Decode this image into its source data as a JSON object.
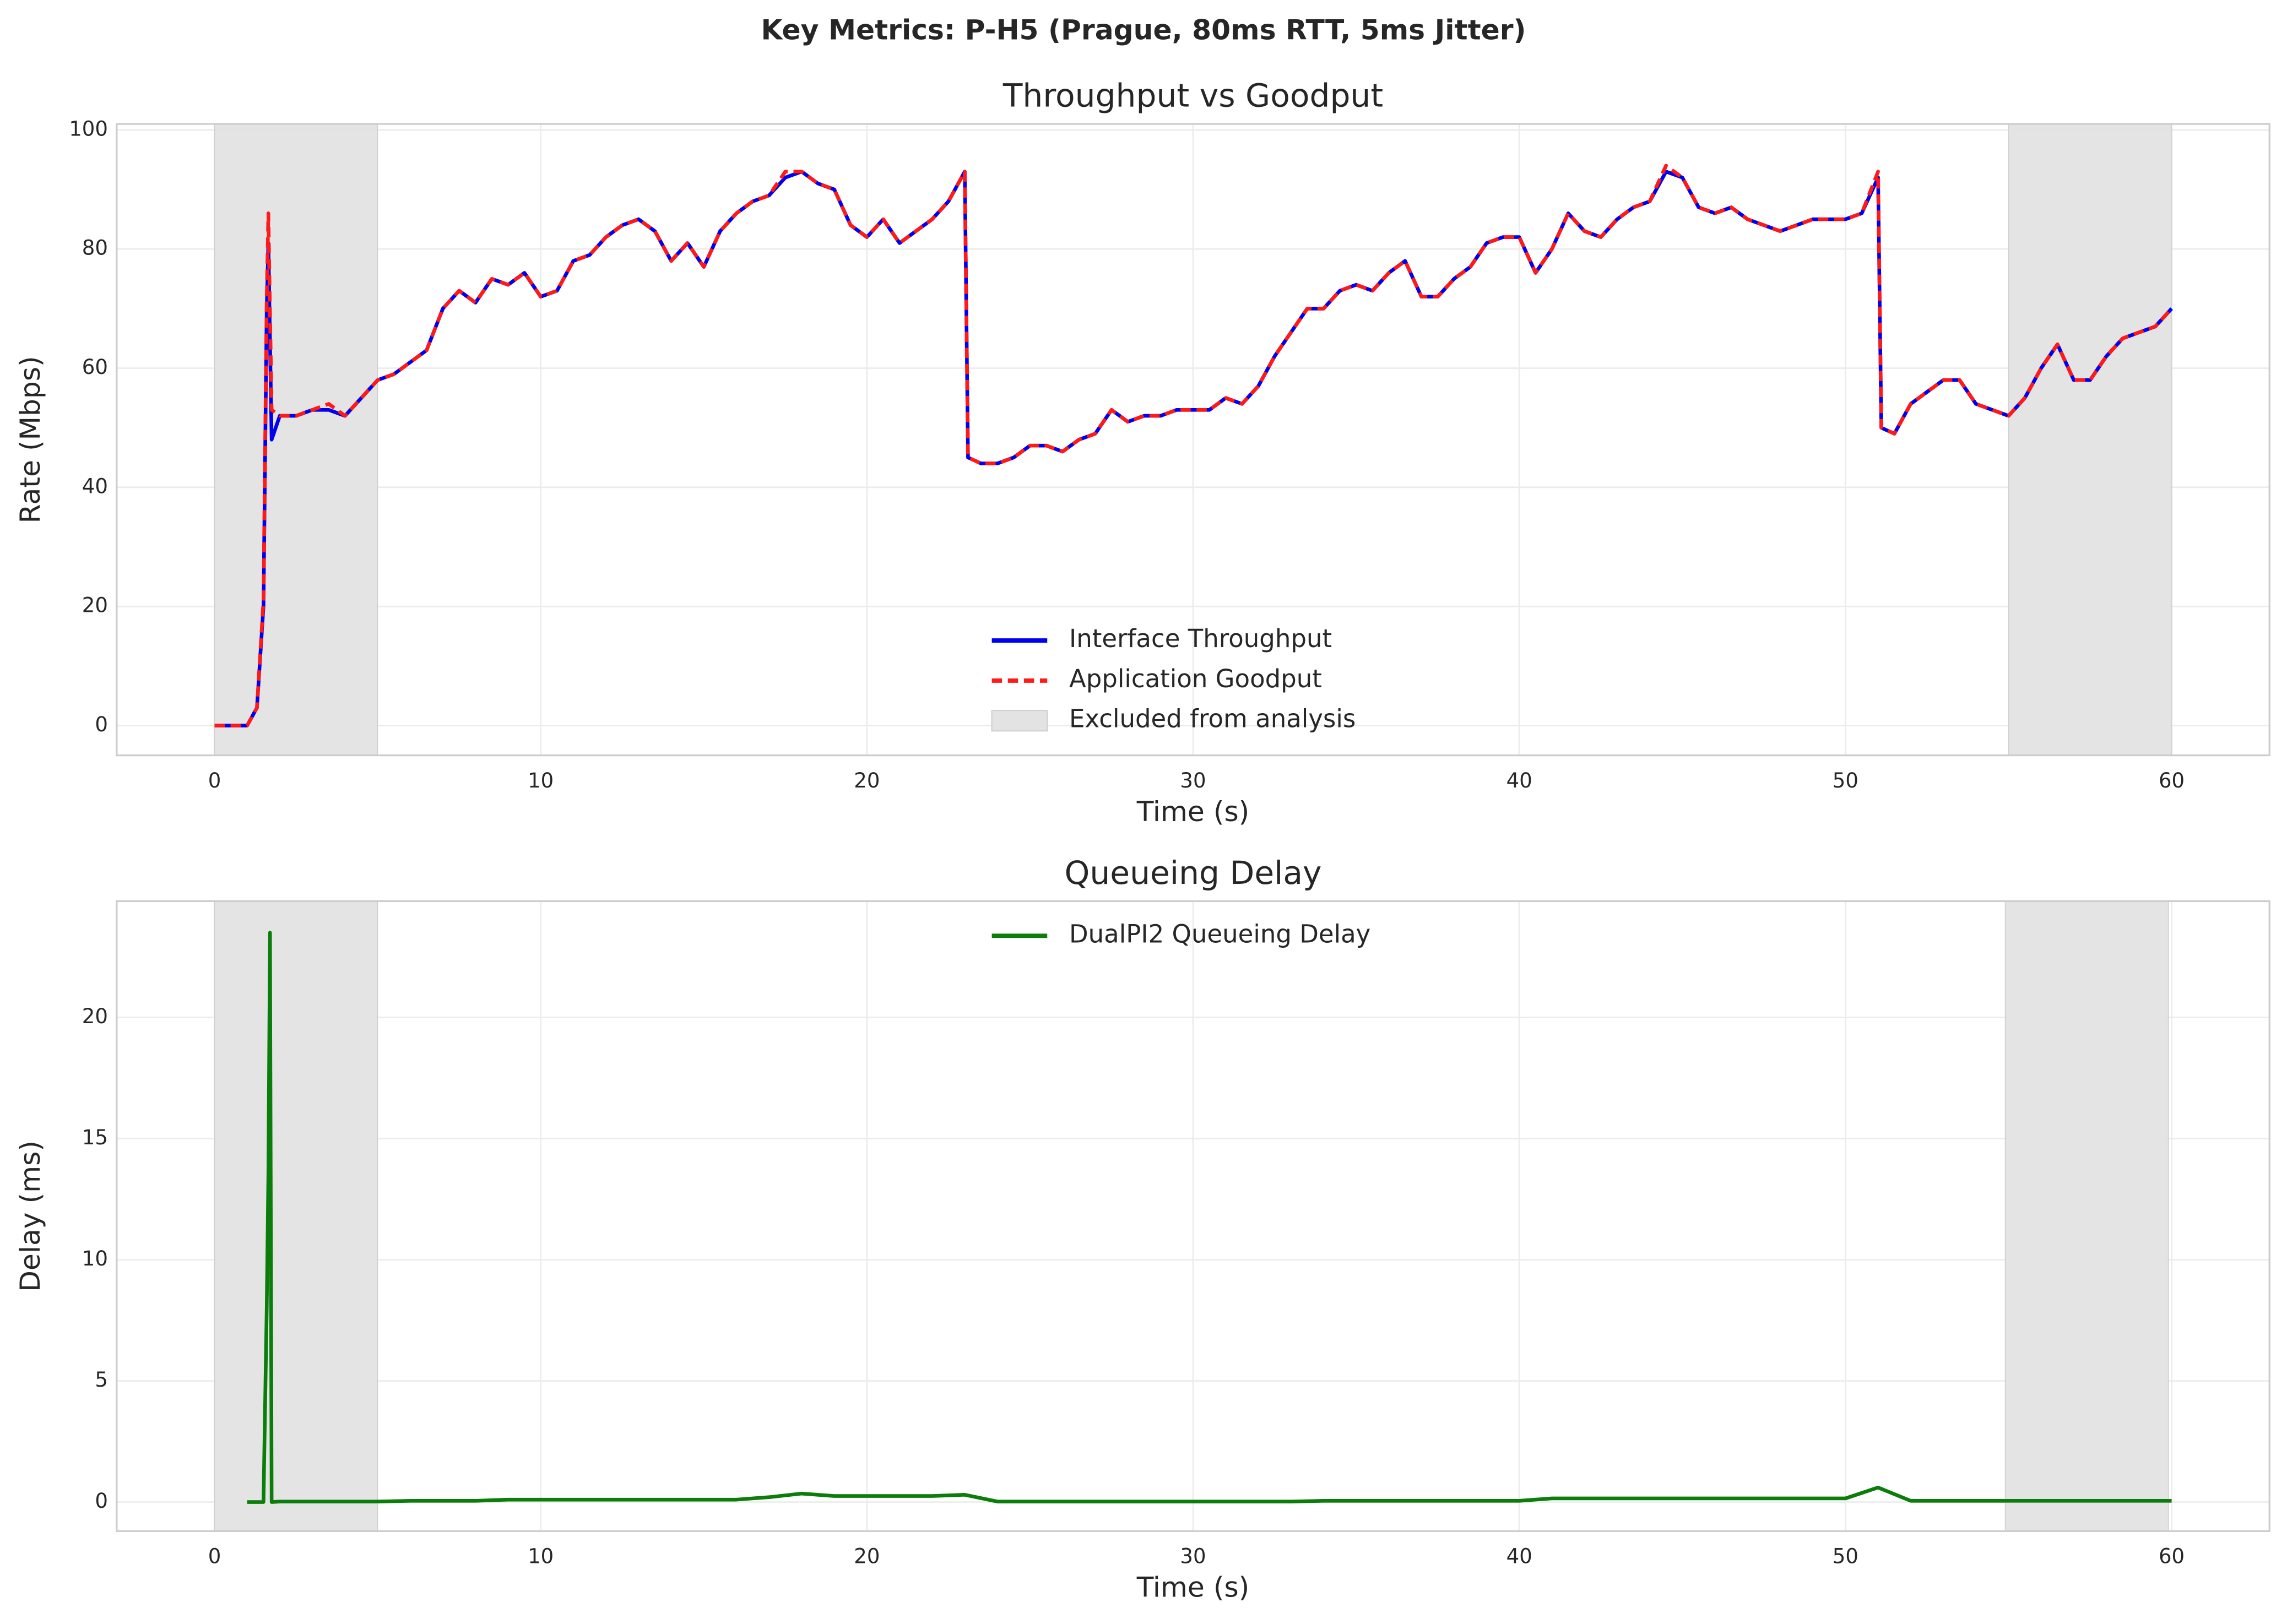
{
  "title": "Key Metrics: P-H5 (Prague, 80ms RTT, 5ms Jitter)",
  "chart_data": [
    {
      "type": "line",
      "title": "Throughput vs Goodput",
      "xlabel": "Time (s)",
      "ylabel": "Rate (Mbps)",
      "x": [
        0,
        0.5,
        1,
        1.3,
        1.5,
        1.6,
        1.65,
        1.75,
        2,
        2.5,
        3,
        3.5,
        4,
        4.5,
        5,
        5.5,
        6,
        6.5,
        7,
        7.5,
        8,
        8.5,
        9,
        9.5,
        10,
        10.5,
        11,
        11.5,
        12,
        12.5,
        13,
        13.5,
        14,
        14.5,
        15,
        15.5,
        16,
        16.5,
        17,
        17.5,
        18,
        18.5,
        19,
        19.5,
        20,
        20.5,
        21,
        21.5,
        22,
        22.5,
        23,
        23.1,
        23.5,
        24,
        24.5,
        25,
        25.5,
        26,
        26.5,
        27,
        27.5,
        28,
        28.5,
        29,
        29.5,
        30,
        30.5,
        31,
        31.5,
        32,
        32.5,
        33,
        33.5,
        34,
        34.5,
        35,
        35.5,
        36,
        36.5,
        37,
        37.5,
        38,
        38.5,
        39,
        39.5,
        40,
        40.5,
        41,
        41.5,
        42,
        42.5,
        43,
        43.5,
        44,
        44.5,
        45,
        45.5,
        46,
        46.5,
        47,
        47.5,
        48,
        48.5,
        49,
        49.5,
        50,
        50.5,
        51,
        51.1,
        51.5,
        52,
        52.5,
        53,
        53.5,
        54,
        54.5,
        55,
        55.5,
        56,
        56.5,
        57,
        57.5,
        58,
        58.5,
        59,
        59.5,
        60
      ],
      "series": [
        {
          "name": "Interface Throughput",
          "color": "#0000ee",
          "linestyle": "solid",
          "values": [
            0,
            0,
            0,
            3,
            20,
            70,
            81,
            48,
            52,
            52,
            53,
            53,
            52,
            55,
            58,
            59,
            61,
            63,
            70,
            73,
            71,
            75,
            74,
            76,
            72,
            73,
            78,
            79,
            82,
            84,
            85,
            83,
            78,
            81,
            77,
            83,
            86,
            88,
            89,
            92,
            93,
            91,
            90,
            84,
            82,
            85,
            81,
            83,
            85,
            88,
            93,
            45,
            44,
            44,
            45,
            47,
            47,
            46,
            48,
            49,
            53,
            51,
            52,
            52,
            53,
            53,
            53,
            55,
            54,
            57,
            62,
            66,
            70,
            70,
            73,
            74,
            73,
            76,
            78,
            72,
            72,
            75,
            77,
            81,
            82,
            82,
            76,
            80,
            86,
            83,
            82,
            85,
            87,
            88,
            93,
            92,
            87,
            86,
            87,
            85,
            84,
            83,
            84,
            85,
            85,
            85,
            86,
            92,
            50,
            49,
            54,
            56,
            58,
            58,
            54,
            53,
            52,
            55,
            60,
            64,
            58,
            58,
            62,
            65,
            66,
            67,
            70
          ]
        },
        {
          "name": "Application Goodput",
          "color": "#ff1a1a",
          "linestyle": "dashed",
          "values": [
            0,
            0,
            0,
            3,
            21,
            72,
            86,
            53,
            52,
            52,
            53,
            54,
            52,
            55,
            58,
            59,
            61,
            63,
            70,
            73,
            71,
            75,
            74,
            76,
            72,
            73,
            78,
            79,
            82,
            84,
            85,
            83,
            78,
            81,
            77,
            83,
            86,
            88,
            89,
            93,
            93,
            91,
            90,
            84,
            82,
            85,
            81,
            83,
            85,
            88,
            93,
            45,
            44,
            44,
            45,
            47,
            47,
            46,
            48,
            49,
            53,
            51,
            52,
            52,
            53,
            53,
            53,
            55,
            54,
            57,
            62,
            66,
            70,
            70,
            73,
            74,
            73,
            76,
            78,
            72,
            72,
            75,
            77,
            81,
            82,
            82,
            76,
            80,
            86,
            83,
            82,
            85,
            87,
            88,
            94,
            92,
            87,
            86,
            87,
            85,
            84,
            83,
            84,
            85,
            85,
            85,
            86,
            93,
            50,
            49,
            54,
            56,
            58,
            58,
            54,
            53,
            52,
            55,
            60,
            64,
            58,
            58,
            62,
            65,
            66,
            67,
            70
          ]
        }
      ],
      "excluded": {
        "name": "Excluded from analysis",
        "color": "#e3e3e3",
        "ranges": [
          [
            0,
            5
          ],
          [
            55,
            60
          ]
        ]
      },
      "xlim": [
        -3,
        63
      ],
      "ylim": [
        -5,
        101
      ],
      "xticks": [
        0,
        10,
        20,
        30,
        40,
        50,
        60
      ],
      "yticks": [
        0,
        20,
        40,
        60,
        80,
        100
      ],
      "grid": true,
      "legend": "lower center"
    },
    {
      "type": "line",
      "title": "Queueing Delay",
      "xlabel": "Time (s)",
      "ylabel": "Delay (ms)",
      "x": [
        1,
        1.5,
        1.6,
        1.65,
        1.7,
        1.75,
        2,
        3,
        4,
        5,
        6,
        7,
        8,
        9,
        10,
        11,
        12,
        13,
        14,
        15,
        16,
        17,
        18,
        19,
        20,
        21,
        22,
        23,
        24,
        25,
        26,
        27,
        28,
        29,
        30,
        31,
        32,
        33,
        34,
        35,
        36,
        37,
        38,
        39,
        40,
        41,
        42,
        43,
        44,
        45,
        46,
        47,
        48,
        49,
        50,
        51,
        52,
        53,
        54,
        55,
        56,
        57,
        58,
        59,
        60
      ],
      "series": [
        {
          "name": "DualPI2 Queueing Delay",
          "color": "#0a7d0a",
          "linestyle": "solid",
          "values": [
            0,
            0,
            8,
            13.5,
            23.5,
            0,
            0.02,
            0.02,
            0.02,
            0.02,
            0.05,
            0.05,
            0.05,
            0.1,
            0.1,
            0.1,
            0.1,
            0.1,
            0.1,
            0.1,
            0.1,
            0.2,
            0.35,
            0.25,
            0.25,
            0.25,
            0.25,
            0.3,
            0.02,
            0.02,
            0.02,
            0.02,
            0.02,
            0.02,
            0.02,
            0.02,
            0.02,
            0.02,
            0.05,
            0.05,
            0.05,
            0.05,
            0.05,
            0.05,
            0.05,
            0.15,
            0.15,
            0.15,
            0.15,
            0.15,
            0.15,
            0.15,
            0.15,
            0.15,
            0.15,
            0.6,
            0.05,
            0.05,
            0.05,
            0.05,
            0.05,
            0.05,
            0.05,
            0.05,
            0.05
          ]
        }
      ],
      "excluded": {
        "color": "#e3e3e3",
        "ranges": [
          [
            0,
            5
          ],
          [
            54.9,
            59.9
          ]
        ]
      },
      "xlim": [
        -3,
        63
      ],
      "ylim": [
        -1.2,
        24.8
      ],
      "xticks": [
        0,
        10,
        20,
        30,
        40,
        50,
        60
      ],
      "yticks": [
        0,
        5,
        10,
        15,
        20
      ],
      "grid": true,
      "legend": "upper center"
    }
  ]
}
